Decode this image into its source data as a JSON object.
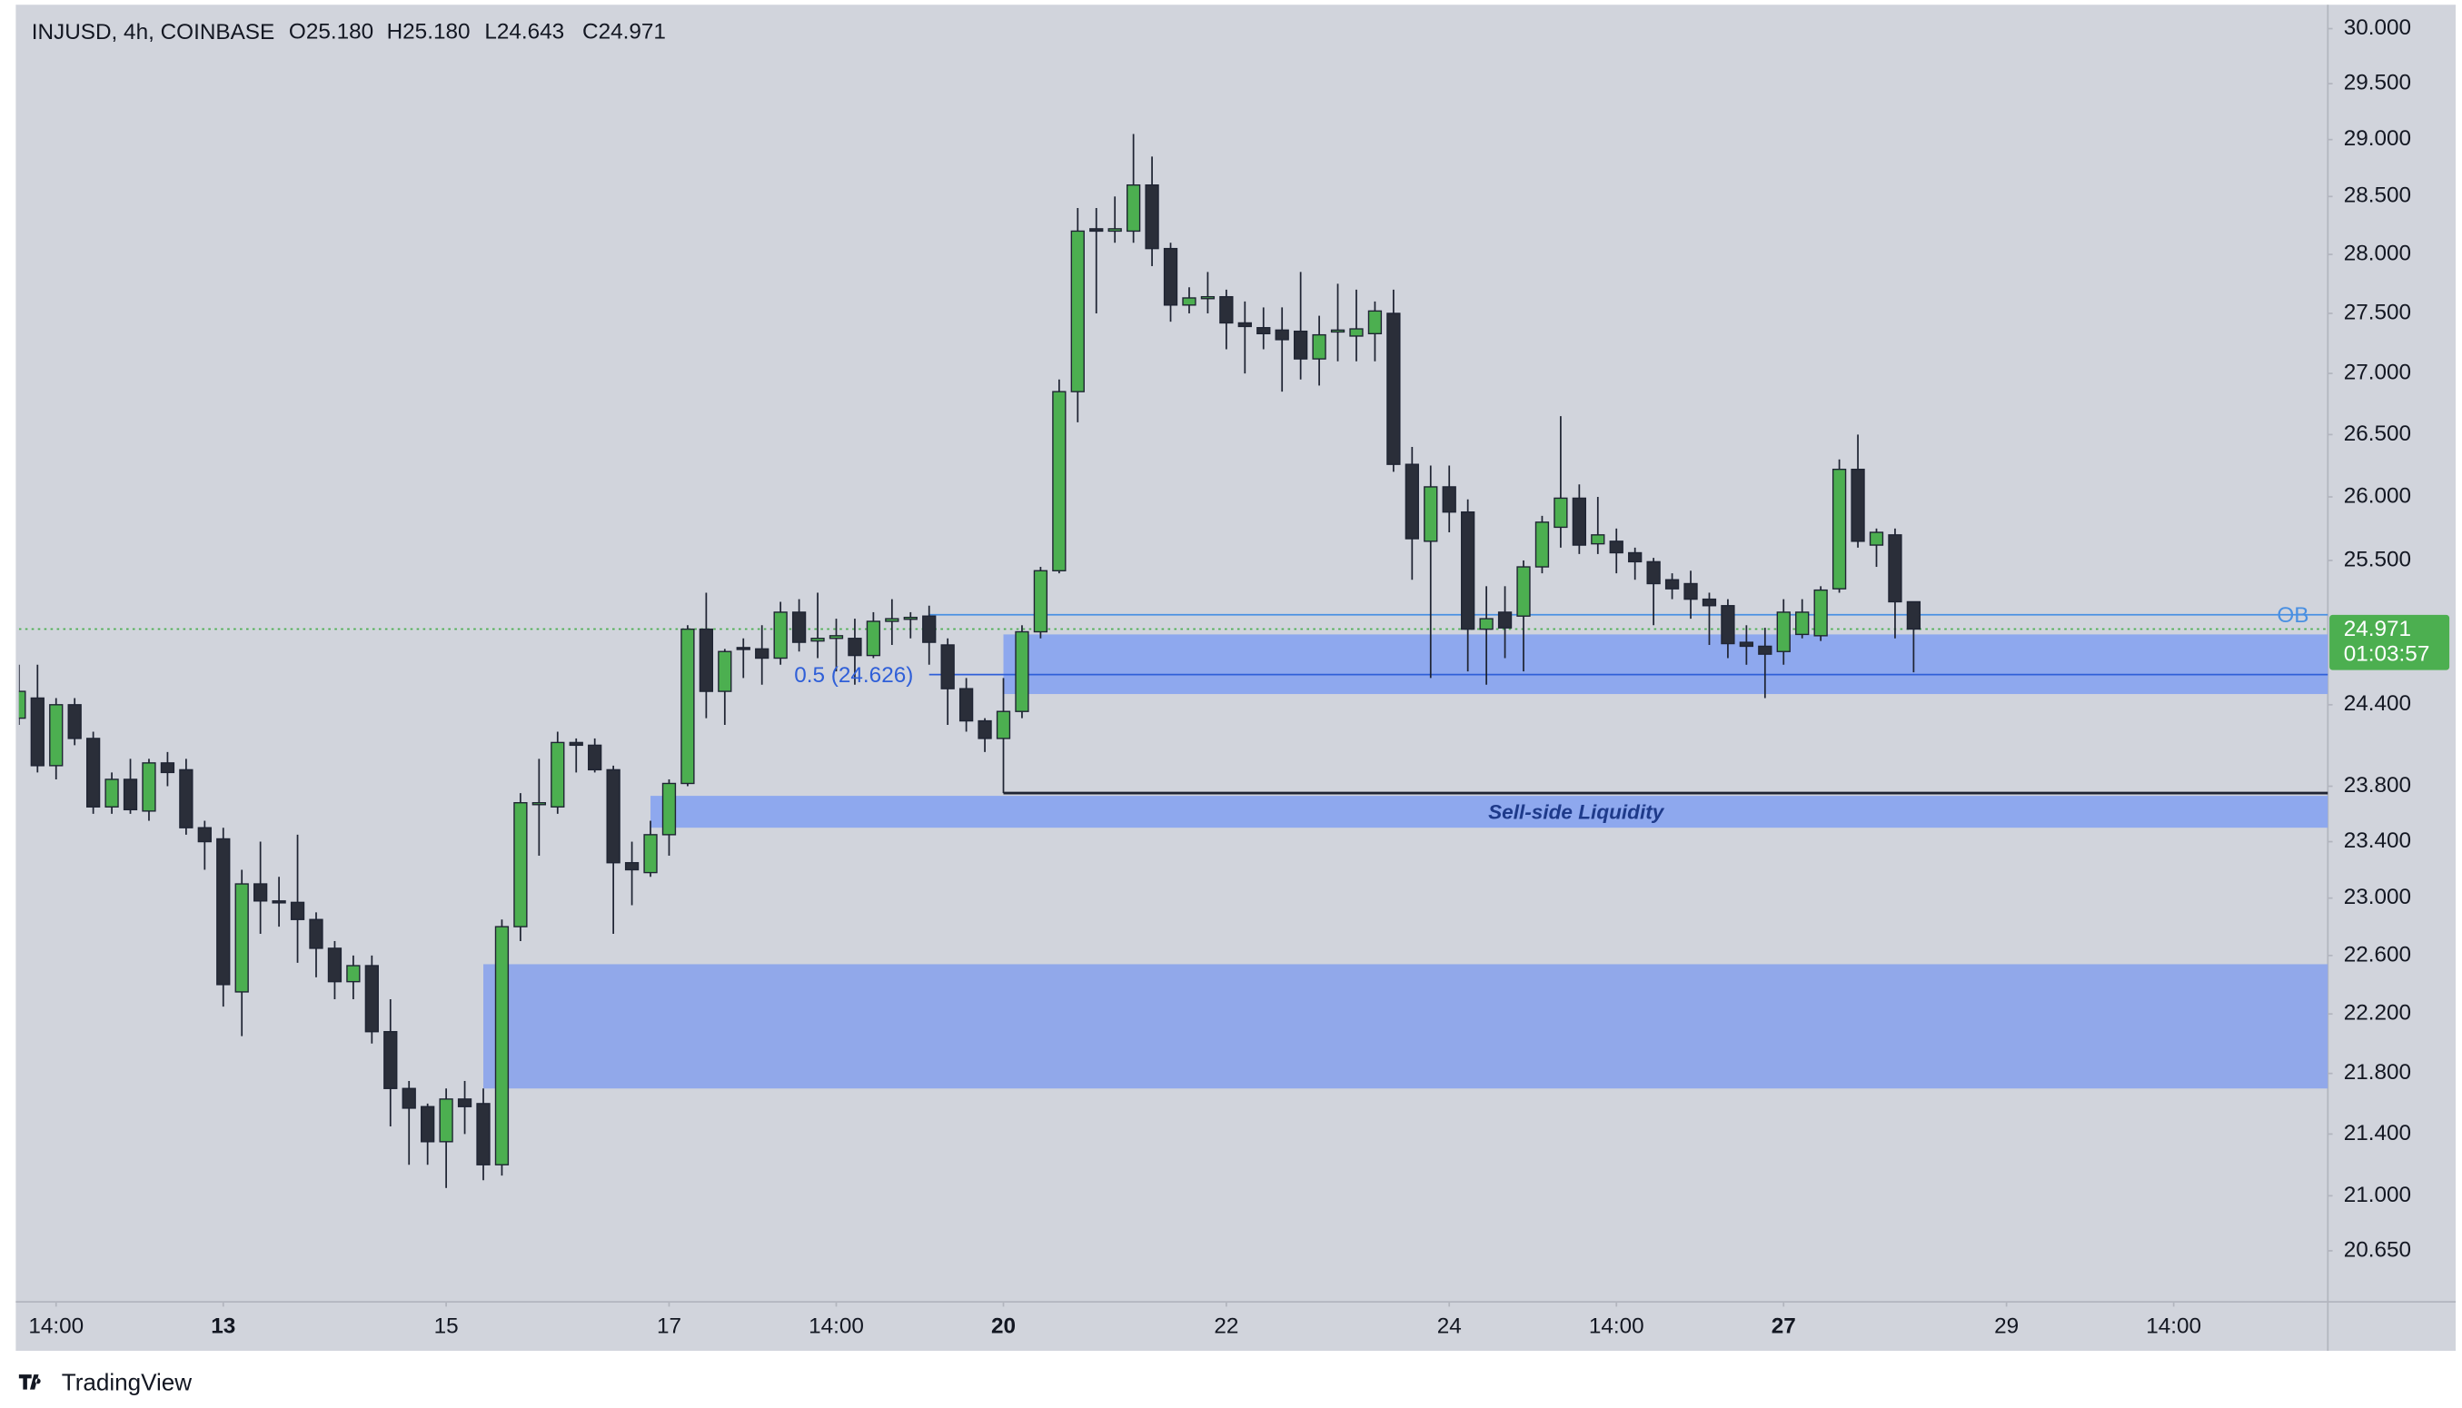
{
  "chart_data": {
    "type": "candlestick",
    "title": "INJUSD, 4h, COINBASE",
    "ohlc_readout": [
      {
        "key": "O",
        "value": 25.18,
        "label": "25.180"
      },
      {
        "key": "H",
        "value": 25.18,
        "label": "25.180"
      },
      {
        "key": "L",
        "value": 24.643,
        "label": "24.643"
      },
      {
        "key": "C",
        "value": 24.971,
        "label": "24.971"
      }
    ],
    "open": [
      24.3,
      24.45,
      23.95,
      24.4,
      24.15,
      23.65,
      23.85,
      23.62,
      23.97,
      23.92,
      23.5,
      23.42,
      22.35,
      23.1,
      22.98,
      22.97,
      22.85,
      22.65,
      22.42,
      22.53,
      22.08,
      21.7,
      21.58,
      21.35,
      21.63,
      21.6,
      21.2,
      22.8,
      23.67,
      23.65,
      24.12,
      24.1,
      23.92,
      23.25,
      23.18,
      23.45,
      23.82,
      24.97,
      24.5,
      24.83,
      24.82,
      24.75,
      25.1,
      24.88,
      24.9,
      24.9,
      24.77,
      25.03,
      25.05,
      25.07,
      24.85,
      24.52,
      24.28,
      24.15,
      24.35,
      24.95,
      25.42,
      26.85,
      28.22,
      28.2,
      28.2,
      28.6,
      28.05,
      27.57,
      27.63,
      27.64,
      27.42,
      27.38,
      27.36,
      27.35,
      27.12,
      27.35,
      27.31,
      27.33,
      27.5,
      26.26,
      25.65,
      26.08,
      25.88,
      24.97,
      25.1,
      25.07,
      25.45,
      25.76,
      25.99,
      25.63,
      25.65,
      25.56,
      25.49,
      25.35,
      25.32,
      25.2,
      25.15,
      24.87,
      24.84,
      24.8,
      24.93,
      24.92,
      25.28,
      26.22,
      25.62,
      25.7,
      25.18
    ],
    "high": [
      24.7,
      24.7,
      24.45,
      24.45,
      24.2,
      23.9,
      24.0,
      24.0,
      24.05,
      24.0,
      23.55,
      23.5,
      23.2,
      23.4,
      23.15,
      23.45,
      22.9,
      22.7,
      22.6,
      22.6,
      22.3,
      21.75,
      21.6,
      21.7,
      21.75,
      21.7,
      22.85,
      23.75,
      24.0,
      24.2,
      24.15,
      24.15,
      23.95,
      23.4,
      23.55,
      23.85,
      25.0,
      25.25,
      24.82,
      24.9,
      25.0,
      25.18,
      25.2,
      25.25,
      25.05,
      25.05,
      25.1,
      25.2,
      25.1,
      25.15,
      24.9,
      24.6,
      24.3,
      24.6,
      25.0,
      25.45,
      26.95,
      28.4,
      28.4,
      28.5,
      29.05,
      28.85,
      28.1,
      27.72,
      27.85,
      27.7,
      27.6,
      27.55,
      27.55,
      27.85,
      27.48,
      27.75,
      27.7,
      27.6,
      27.7,
      26.4,
      26.25,
      26.25,
      25.98,
      25.3,
      25.3,
      25.5,
      25.85,
      26.65,
      26.1,
      26.0,
      25.75,
      25.6,
      25.52,
      25.4,
      25.42,
      25.25,
      25.2,
      25.0,
      24.98,
      25.2,
      25.2,
      25.3,
      26.3,
      26.5,
      25.75,
      25.75,
      25.18
    ],
    "low": [
      24.25,
      23.9,
      23.85,
      24.1,
      23.6,
      23.6,
      23.6,
      23.55,
      23.8,
      23.45,
      23.2,
      22.25,
      22.05,
      22.75,
      22.8,
      22.55,
      22.45,
      22.3,
      22.3,
      22.0,
      21.45,
      21.2,
      21.2,
      21.05,
      21.4,
      21.1,
      21.13,
      22.7,
      23.3,
      23.6,
      23.9,
      23.9,
      22.75,
      22.95,
      23.15,
      23.3,
      23.8,
      24.3,
      24.25,
      24.6,
      24.55,
      24.7,
      24.8,
      24.75,
      24.65,
      24.55,
      24.75,
      24.85,
      24.9,
      24.7,
      24.25,
      24.2,
      24.05,
      23.75,
      24.3,
      24.9,
      25.4,
      26.6,
      27.5,
      28.1,
      28.1,
      27.9,
      27.43,
      27.5,
      27.5,
      27.2,
      27.0,
      27.2,
      26.85,
      26.95,
      26.9,
      27.1,
      27.1,
      27.1,
      26.2,
      25.35,
      24.6,
      25.72,
      24.65,
      24.55,
      24.75,
      24.65,
      25.4,
      25.6,
      25.55,
      25.55,
      25.4,
      25.35,
      25.0,
      25.2,
      25.05,
      24.85,
      24.75,
      24.7,
      24.45,
      24.7,
      24.9,
      24.88,
      25.25,
      25.6,
      25.45,
      24.9,
      24.643
    ],
    "close": [
      24.5,
      23.95,
      24.4,
      24.15,
      23.65,
      23.85,
      23.63,
      23.97,
      23.9,
      23.5,
      23.4,
      22.4,
      23.1,
      22.98,
      22.97,
      22.85,
      22.65,
      22.42,
      22.53,
      22.08,
      21.7,
      21.57,
      21.35,
      21.63,
      21.58,
      21.2,
      22.8,
      23.68,
      23.68,
      24.12,
      24.1,
      23.92,
      23.25,
      23.2,
      23.45,
      23.82,
      24.97,
      24.5,
      24.8,
      24.82,
      24.75,
      25.1,
      24.87,
      24.9,
      24.92,
      24.77,
      25.03,
      25.05,
      25.06,
      24.87,
      24.52,
      24.28,
      24.15,
      24.35,
      24.95,
      25.42,
      26.85,
      28.2,
      28.2,
      28.22,
      28.6,
      28.05,
      27.57,
      27.63,
      27.64,
      27.42,
      27.39,
      27.33,
      27.28,
      27.12,
      27.32,
      27.36,
      27.37,
      27.52,
      26.26,
      25.67,
      26.08,
      25.88,
      24.97,
      25.05,
      24.98,
      25.45,
      25.8,
      25.99,
      25.62,
      25.7,
      25.56,
      25.49,
      25.32,
      25.28,
      25.2,
      25.15,
      24.86,
      24.84,
      24.78,
      25.1,
      25.1,
      25.27,
      26.22,
      25.65,
      25.72,
      25.18,
      24.971
    ],
    "up_color": "#4caf50",
    "down_color": "#2a2e39",
    "log_scale": true,
    "grid": false,
    "xlim": [
      0,
      124.3
    ],
    "ylim": [
      20.33,
      30.22
    ],
    "xticks": [
      {
        "value": 2,
        "label": "14:00"
      },
      {
        "value": 11,
        "label": "13",
        "major": true
      },
      {
        "value": 23,
        "label": "15"
      },
      {
        "value": 35,
        "label": "17"
      },
      {
        "value": 44,
        "label": "14:00"
      },
      {
        "value": 53,
        "label": "20",
        "major": true
      },
      {
        "value": 65,
        "label": "22"
      },
      {
        "value": 77,
        "label": "24"
      },
      {
        "value": 86,
        "label": "14:00"
      },
      {
        "value": 95,
        "label": "27",
        "major": true
      },
      {
        "value": 107,
        "label": "29"
      },
      {
        "value": 116,
        "label": "14:00"
      }
    ],
    "yticks": [
      {
        "value": 30,
        "label": "30.000"
      },
      {
        "value": 29.5,
        "label": "29.500"
      },
      {
        "value": 29,
        "label": "29.000"
      },
      {
        "value": 28.5,
        "label": "28.500"
      },
      {
        "value": 28,
        "label": "28.000"
      },
      {
        "value": 27.5,
        "label": "27.500"
      },
      {
        "value": 27,
        "label": "27.000"
      },
      {
        "value": 26.5,
        "label": "26.500"
      },
      {
        "value": 26,
        "label": "26.000"
      },
      {
        "value": 25.5,
        "label": "25.500"
      },
      {
        "value": 24.4,
        "label": "24.400"
      },
      {
        "value": 23.8,
        "label": "23.800"
      },
      {
        "value": 23.4,
        "label": "23.400"
      },
      {
        "value": 23,
        "label": "23.000"
      },
      {
        "value": 22.6,
        "label": "22.600"
      },
      {
        "value": 22.2,
        "label": "22.200"
      },
      {
        "value": 21.8,
        "label": "21.800"
      },
      {
        "value": 21.4,
        "label": "21.400"
      },
      {
        "value": 21,
        "label": "21.000"
      },
      {
        "value": 20.65,
        "label": "20.650"
      }
    ],
    "zones": [
      {
        "x0": 53,
        "top": 24.93,
        "bottom": 24.48,
        "color": "#8ea8ee"
      },
      {
        "x0": 34,
        "top": 23.73,
        "bottom": 23.5,
        "color": "#8ea8ee",
        "label": "Sell-side Liquidity"
      },
      {
        "x0": 25,
        "top": 22.54,
        "bottom": 21.7,
        "color": "#91a8ea"
      }
    ],
    "levels": [
      {
        "x0": 49,
        "value": 25.08,
        "label": "OB",
        "color": "#4a90e2"
      },
      {
        "x0": 49,
        "value": 24.626,
        "label": "0.5 (24.626)",
        "color": "#2f5fd8"
      },
      {
        "x0": 53,
        "value": 23.75,
        "color": "#1f2433"
      }
    ],
    "last_price": {
      "value": 24.971,
      "label": "24.971",
      "countdown": "01:03:57",
      "color": "#4caf50"
    },
    "branding": "TradingView"
  }
}
